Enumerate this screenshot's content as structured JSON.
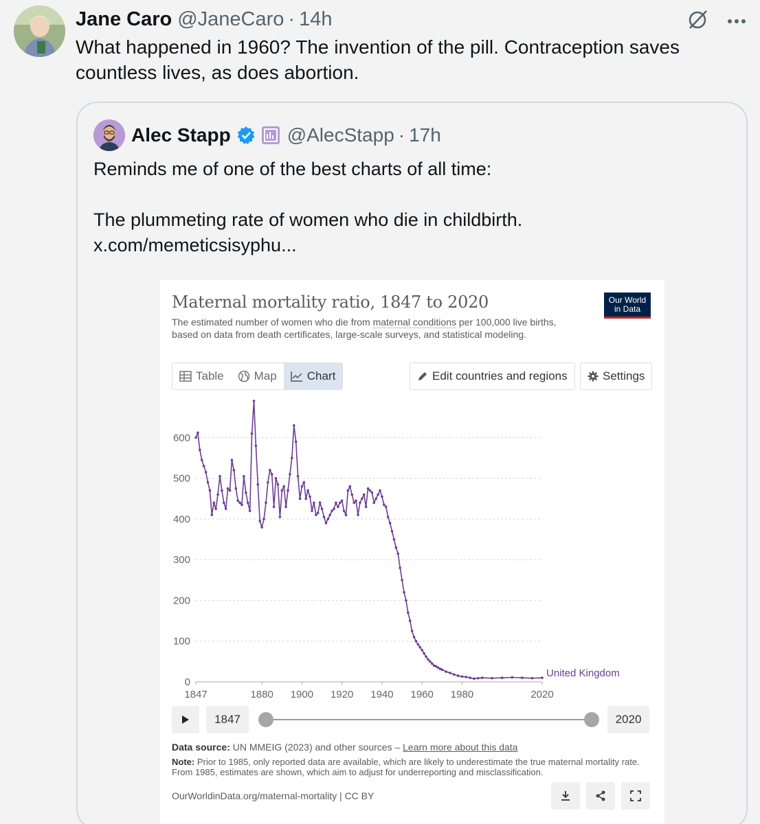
{
  "tweet": {
    "author_name": "Jane Caro",
    "author_handle": "@JaneCaro",
    "separator": "·",
    "time": "14h",
    "text": "What happened in 1960? The invention of the pill. Contraception saves countless lives, as does abortion.",
    "icons": [
      "grok-icon",
      "more-icon"
    ]
  },
  "quote": {
    "author_name": "Alec Stapp",
    "author_handle": "@AlecStapp",
    "separator": "·",
    "time": "17h",
    "badges": [
      "verified-badge",
      "affiliate-badge"
    ],
    "lines": [
      "Reminds me of one of the best charts of all time:",
      "",
      "The plummeting rate of women who die in childbirth.",
      "x.com/memeticsisyphu..."
    ]
  },
  "owid": {
    "title": "Maternal mortality ratio, 1847 to 2020",
    "subtitle_pre": "The estimated number of women who die from ",
    "subtitle_link": "maternal conditions",
    "subtitle_post": " per 100,000 live births, based on data from death certificates, large-scale surveys, and statistical modeling.",
    "logo_line1": "Our World",
    "logo_line2": "in Data",
    "tabs": [
      {
        "label": "Table",
        "icon": "table-icon"
      },
      {
        "label": "Map",
        "icon": "globe-icon"
      },
      {
        "label": "Chart",
        "icon": "line-chart-icon",
        "active": true
      }
    ],
    "edit_label": "Edit countries and regions",
    "settings_label": "Settings",
    "timeline_start": "1847",
    "timeline_end": "2020",
    "source_label": "Data source:",
    "source_text": " UN MMEIG (2023) and other sources – ",
    "source_link": "Learn more about this data",
    "note_label": "Note:",
    "note_text": " Prior to 1985, only reported data are available, which are likely to underestimate the true maternal mortality rate. From 1985, estimates are shown, which aim to adjust for underreporting and misclassification.",
    "footer_url": "OurWorldinData.org/maternal-mortality | CC BY"
  },
  "chart_data": {
    "type": "line",
    "title": "Maternal mortality ratio, 1847 to 2020",
    "ylim": [
      0,
      700
    ],
    "yticks": [
      0,
      100,
      200,
      300,
      400,
      500,
      600
    ],
    "xlim": [
      1847,
      2020
    ],
    "xticks": [
      1847,
      1880,
      1900,
      1920,
      1940,
      1960,
      1980,
      2020
    ],
    "grid": true,
    "line_color": "#6d3e91",
    "series": [
      {
        "name": "United Kingdom",
        "x": [
          1847,
          1848,
          1849,
          1850,
          1851,
          1852,
          1853,
          1854,
          1855,
          1856,
          1857,
          1858,
          1859,
          1860,
          1861,
          1862,
          1863,
          1864,
          1865,
          1866,
          1867,
          1868,
          1869,
          1870,
          1871,
          1872,
          1873,
          1874,
          1875,
          1876,
          1877,
          1878,
          1879,
          1880,
          1881,
          1882,
          1883,
          1884,
          1885,
          1886,
          1887,
          1888,
          1889,
          1890,
          1891,
          1892,
          1893,
          1894,
          1895,
          1896,
          1897,
          1898,
          1899,
          1900,
          1901,
          1902,
          1903,
          1904,
          1905,
          1906,
          1907,
          1908,
          1909,
          1910,
          1911,
          1912,
          1913,
          1914,
          1915,
          1916,
          1917,
          1918,
          1919,
          1920,
          1921,
          1922,
          1923,
          1924,
          1925,
          1926,
          1927,
          1928,
          1929,
          1930,
          1931,
          1932,
          1933,
          1934,
          1935,
          1936,
          1937,
          1938,
          1939,
          1940,
          1941,
          1942,
          1943,
          1944,
          1945,
          1946,
          1947,
          1948,
          1949,
          1950,
          1951,
          1952,
          1953,
          1954,
          1955,
          1956,
          1957,
          1958,
          1959,
          1960,
          1961,
          1962,
          1963,
          1964,
          1965,
          1966,
          1967,
          1968,
          1969,
          1970,
          1972,
          1974,
          1976,
          1978,
          1980,
          1982,
          1984,
          1986,
          1988,
          1990,
          1995,
          2000,
          2005,
          2010,
          2015,
          2020
        ],
        "values": [
          600,
          612,
          570,
          545,
          530,
          515,
          490,
          470,
          410,
          440,
          425,
          460,
          505,
          470,
          440,
          425,
          475,
          470,
          545,
          520,
          475,
          445,
          440,
          435,
          505,
          465,
          440,
          420,
          610,
          690,
          580,
          485,
          395,
          380,
          400,
          440,
          490,
          520,
          510,
          430,
          500,
          485,
          405,
          470,
          480,
          430,
          470,
          510,
          550,
          630,
          590,
          505,
          450,
          480,
          490,
          450,
          470,
          455,
          420,
          440,
          410,
          415,
          440,
          425,
          405,
          390,
          400,
          410,
          420,
          425,
          440,
          430,
          440,
          445,
          420,
          410,
          470,
          480,
          460,
          440,
          445,
          410,
          440,
          450,
          460,
          430,
          475,
          470,
          465,
          440,
          450,
          460,
          470,
          455,
          435,
          430,
          405,
          390,
          370,
          350,
          330,
          315,
          280,
          250,
          220,
          200,
          170,
          150,
          125,
          110,
          100,
          92,
          85,
          78,
          70,
          62,
          55,
          50,
          45,
          40,
          38,
          35,
          32,
          30,
          25,
          22,
          18,
          15,
          13,
          12,
          10,
          8,
          9,
          10,
          9,
          10,
          11,
          10,
          9,
          10
        ]
      }
    ]
  }
}
